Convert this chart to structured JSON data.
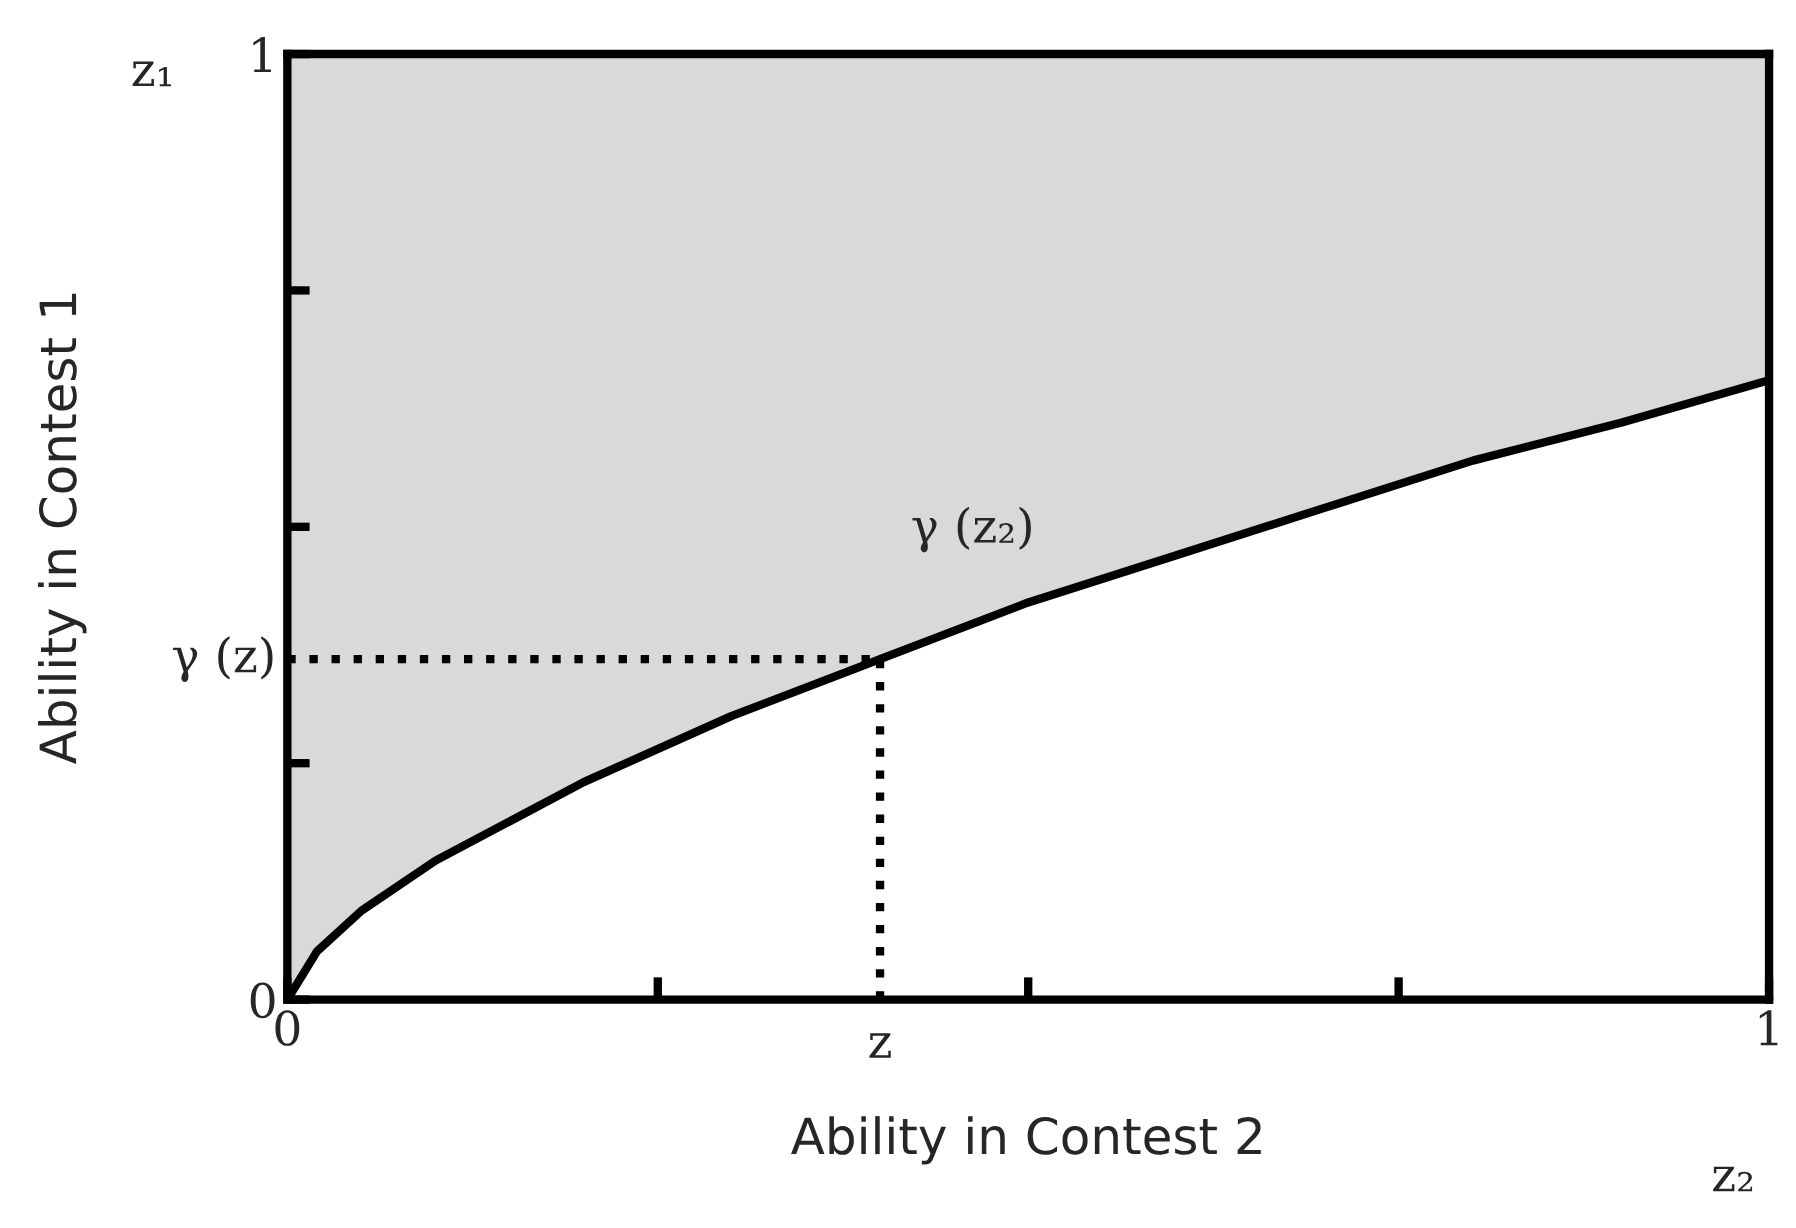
{
  "chart_data": {
    "type": "line",
    "xlabel": "Ability in Contest 2",
    "ylabel": "Ability in Contest 1",
    "x": [
      0,
      0.02,
      0.05,
      0.1,
      0.2,
      0.3,
      0.4,
      0.5,
      0.6,
      0.7,
      0.8,
      0.9,
      1
    ],
    "series": [
      {
        "color": "#000000",
        "values": [
          0,
          0.051,
          0.094,
          0.147,
          0.23,
          0.3,
          0.36,
          0.42,
          0.47,
          0.52,
          0.57,
          0.61,
          0.655
        ],
        "lower": [
          0,
          0.051,
          0.094,
          0.147,
          0.23,
          0.3,
          0.36,
          0.42,
          0.47,
          0.52,
          0.57,
          0.61,
          0.655
        ],
        "upper": [
          1,
          1,
          1,
          1,
          1,
          1,
          1,
          1,
          1,
          1,
          1,
          1,
          1
        ]
      }
    ],
    "xlim": [
      0,
      1
    ],
    "ylim": [
      0,
      1
    ],
    "xticks": [
      0,
      {
        "value": 0.25,
        "label": null
      },
      {
        "value": 0.5,
        "label": null
      },
      {
        "value": 0.75,
        "label": null
      },
      1
    ],
    "yticks": [
      0,
      {
        "value": 0.25,
        "label": null
      },
      {
        "value": 0.5,
        "label": null
      },
      {
        "value": 0.75,
        "label": null
      },
      1
    ],
    "ref_lines": [
      {
        "axis": "x",
        "value": 0.4,
        "label": "z",
        "line_style": "dotted",
        "color": "#000000"
      },
      {
        "axis": "y",
        "value": 0.36,
        "label": "γ (z)",
        "line_style": "dotted",
        "color": "#000000"
      }
    ],
    "annotations": [
      {
        "text": "γ (z₂)",
        "x": 0.5,
        "y": 0.42
      },
      "z₁",
      "z₂"
    ],
    "grid": false,
    "legend": false,
    "marker": "none",
    "line_style": "solid"
  }
}
